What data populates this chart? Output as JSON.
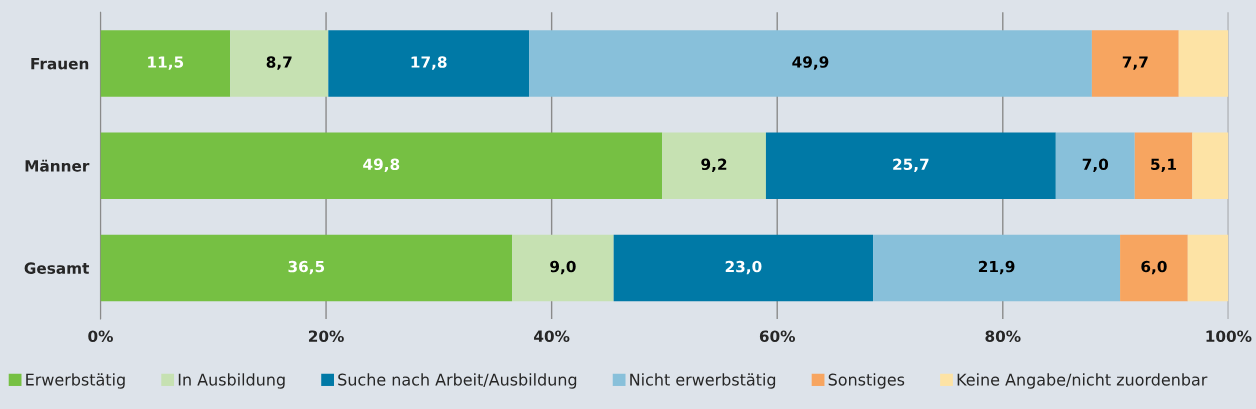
{
  "chart_data": {
    "type": "bar",
    "orientation": "horizontal",
    "stacked": true,
    "categories": [
      "Frauen",
      "Männer",
      "Gesamt"
    ],
    "series": [
      {
        "name": "Erwerbstätig",
        "color": "#76c043",
        "values": [
          11.5,
          49.8,
          36.5
        ]
      },
      {
        "name": "In Ausbildung",
        "color": "#c6e1b2",
        "values": [
          8.7,
          9.2,
          9.0
        ]
      },
      {
        "name": "Suche nach Arbeit/Ausbildung",
        "color": "#0079a6",
        "values": [
          17.8,
          25.7,
          23.0
        ]
      },
      {
        "name": "Nicht erwerbstätig",
        "color": "#88c0da",
        "values": [
          49.9,
          7.0,
          21.9
        ]
      },
      {
        "name": "Sonstiges",
        "color": "#f7a560",
        "values": [
          7.7,
          5.1,
          6.0
        ]
      },
      {
        "name": "Keine Angabe/nicht zuordenbar",
        "color": "#fde3a5",
        "values": [
          4.4,
          3.2,
          3.6
        ],
        "value_labels": [
          null,
          null,
          null
        ]
      }
    ],
    "value_labels": [
      [
        "11,5",
        "49,8",
        "36,5"
      ],
      [
        "8,7",
        "9,2",
        "9,0"
      ],
      [
        "17,8",
        "25,7",
        "23,0"
      ],
      [
        "49,9",
        "7,0",
        "21,9"
      ],
      [
        "7,7",
        "5,1",
        "6,0"
      ],
      [
        null,
        null,
        null
      ]
    ],
    "xlim": [
      0,
      100
    ],
    "xticks": [
      {
        "value": 0,
        "label": "0%"
      },
      {
        "value": 20,
        "label": "20%"
      },
      {
        "value": 40,
        "label": "40%"
      },
      {
        "value": 60,
        "label": "60%"
      },
      {
        "value": 80,
        "label": "80%"
      },
      {
        "value": 100,
        "label": "100%"
      }
    ],
    "grid": "x",
    "legend": "bottom"
  }
}
